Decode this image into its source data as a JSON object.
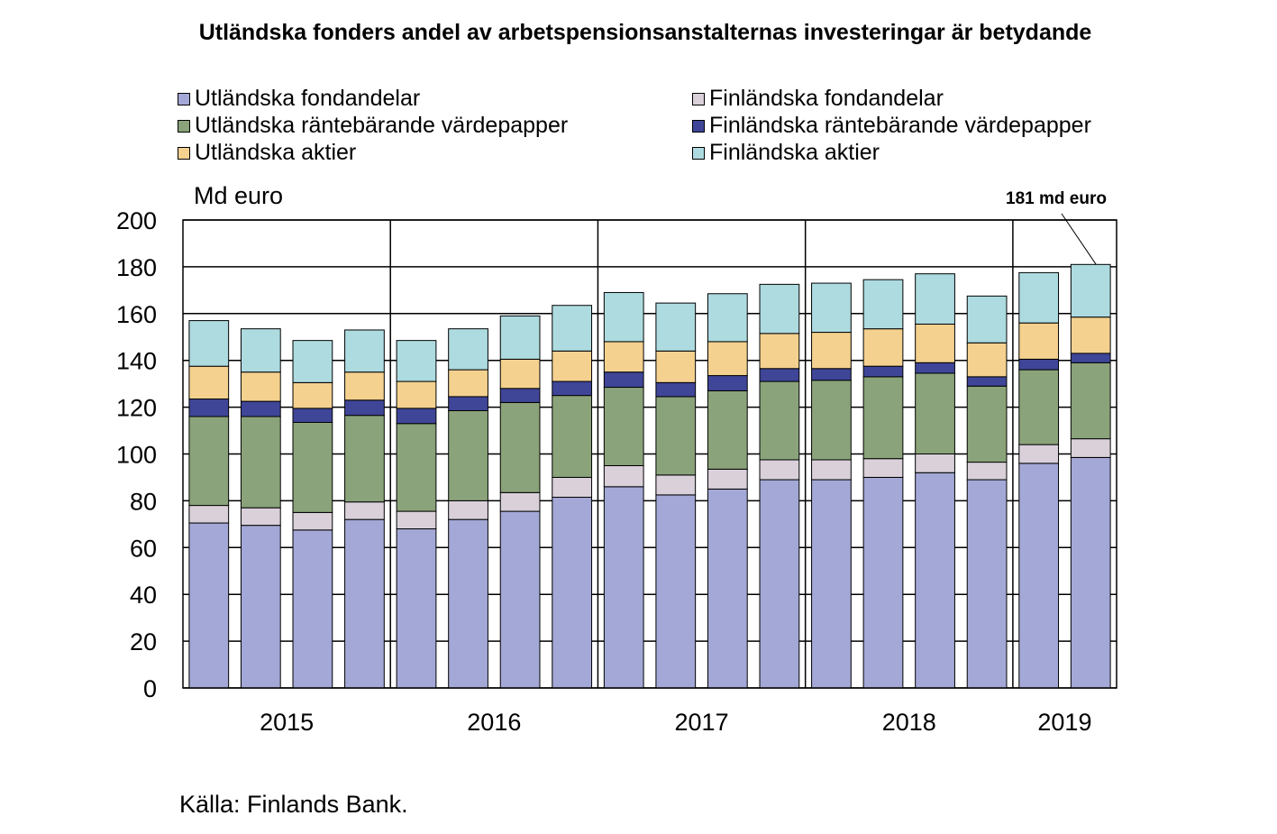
{
  "chart_data": {
    "type": "bar",
    "stacked": true,
    "title": "Utländska fonders andel av arbetspensionsanstalternas investeringar är betydande",
    "ylabel": "Md euro",
    "ylim": [
      0,
      200
    ],
    "yticks": [
      0,
      20,
      40,
      60,
      80,
      100,
      120,
      140,
      160,
      180,
      200
    ],
    "grid": true,
    "legend_position": "top",
    "year_labels": [
      "2015",
      "2016",
      "2017",
      "2018",
      "2019"
    ],
    "bars_per_year": [
      4,
      4,
      4,
      4,
      2
    ],
    "annotation": "181 md euro",
    "series": [
      {
        "name": "Utländska fondandelar",
        "color": "#a3a8d6",
        "values": [
          70.5,
          69.5,
          67.5,
          72,
          68,
          72,
          75.5,
          81.5,
          86,
          82.5,
          85,
          89,
          89,
          90,
          92,
          89,
          96,
          98.5
        ]
      },
      {
        "name": "Finländska fondandelar",
        "color": "#d9d0da",
        "values": [
          7.5,
          7.5,
          7.5,
          7.5,
          7.5,
          8,
          8,
          8.5,
          9,
          8.5,
          8.5,
          8.5,
          8.5,
          8,
          8,
          7.5,
          8,
          8
        ]
      },
      {
        "name": "Utländska räntebärande värdepapper",
        "color": "#8aa37a",
        "values": [
          38,
          39,
          38.5,
          37,
          37.5,
          38.5,
          38.5,
          35,
          33.5,
          33.5,
          33.5,
          33.5,
          34,
          35,
          34.5,
          32.5,
          32,
          32.5
        ]
      },
      {
        "name": "Finländska räntebärande värdepapper",
        "color": "#3f4698",
        "values": [
          7.5,
          6.5,
          6,
          6.5,
          6.5,
          6,
          6,
          6,
          6.5,
          6,
          6.5,
          5.5,
          5,
          4.5,
          4.5,
          4,
          4.5,
          4
        ]
      },
      {
        "name": "Utländska aktier",
        "color": "#f4d18f",
        "values": [
          14,
          12.5,
          11,
          12,
          11.5,
          11.5,
          12.5,
          13,
          13,
          13.5,
          14.5,
          15,
          15.5,
          16,
          16.5,
          14.5,
          15.5,
          15.5
        ]
      },
      {
        "name": "Finländska aktier",
        "color": "#addbe0",
        "values": [
          19.5,
          18.5,
          18,
          18,
          17.5,
          17.5,
          18.5,
          19.5,
          21,
          20.5,
          20.5,
          21,
          21,
          21,
          21.5,
          20,
          21.5,
          22.5
        ]
      }
    ]
  },
  "source": "Källa: Finlands Bank."
}
